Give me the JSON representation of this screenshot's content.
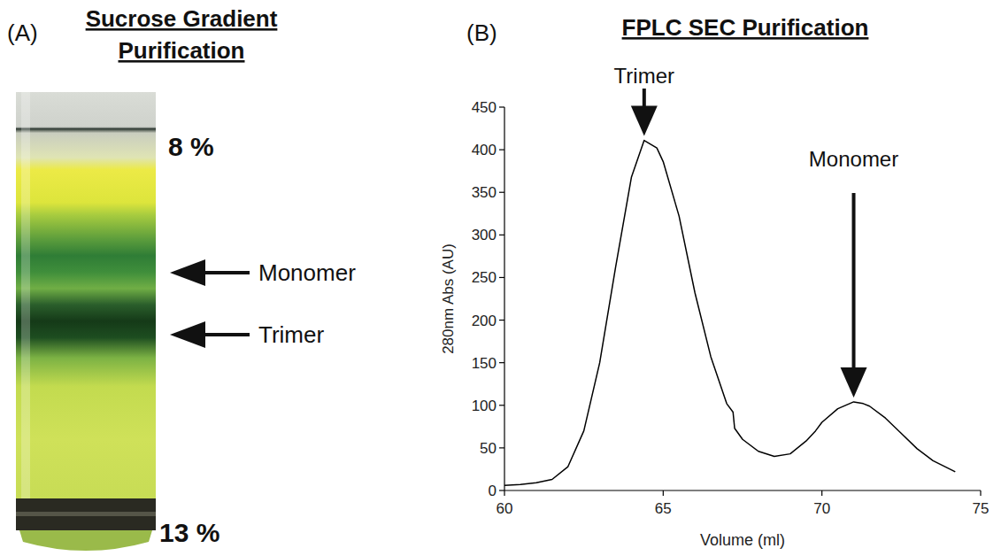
{
  "panel_a": {
    "panel_letter": "(A)",
    "title": "Sucrose Gradient Purification",
    "top_label": "8 %",
    "bottom_label": "13 %",
    "band_labels": [
      "Monomer",
      "Trimer"
    ]
  },
  "chart_data": {
    "type": "line",
    "panel_letter": "(B)",
    "title": "FPLC SEC Purification",
    "x_label": "Volume (ml)",
    "y_label": "280nm Abs (AU)",
    "x": [
      60,
      60.5,
      61,
      61.5,
      62,
      62.5,
      63,
      63.5,
      64,
      64.4,
      64.8,
      65,
      65.5,
      66,
      66.5,
      67,
      67.2,
      67.25,
      67.5,
      68,
      68.5,
      69,
      69.5,
      69.8,
      70,
      70.5,
      71,
      71.3,
      71.5,
      72,
      72.5,
      73,
      73.5,
      74.2
    ],
    "values": [
      6,
      7,
      9,
      13,
      28,
      70,
      150,
      262,
      368,
      411,
      402,
      386,
      322,
      232,
      157,
      102,
      92,
      73,
      60,
      46,
      40,
      43,
      58,
      70,
      80,
      96,
      104,
      102,
      99,
      85,
      67,
      49,
      35,
      22
    ],
    "color": "#000000",
    "xlim": [
      60,
      75
    ],
    "ylim": [
      0,
      450
    ],
    "xticks": [
      60,
      65,
      70,
      75
    ],
    "yticks": [
      0,
      50,
      100,
      150,
      200,
      250,
      300,
      350,
      400,
      450
    ],
    "grid": false,
    "annotations": [
      {
        "text": "Trimer",
        "x": 64.4,
        "y": 411
      },
      {
        "text": "Monomer",
        "x": 71,
        "y": 104
      }
    ]
  }
}
